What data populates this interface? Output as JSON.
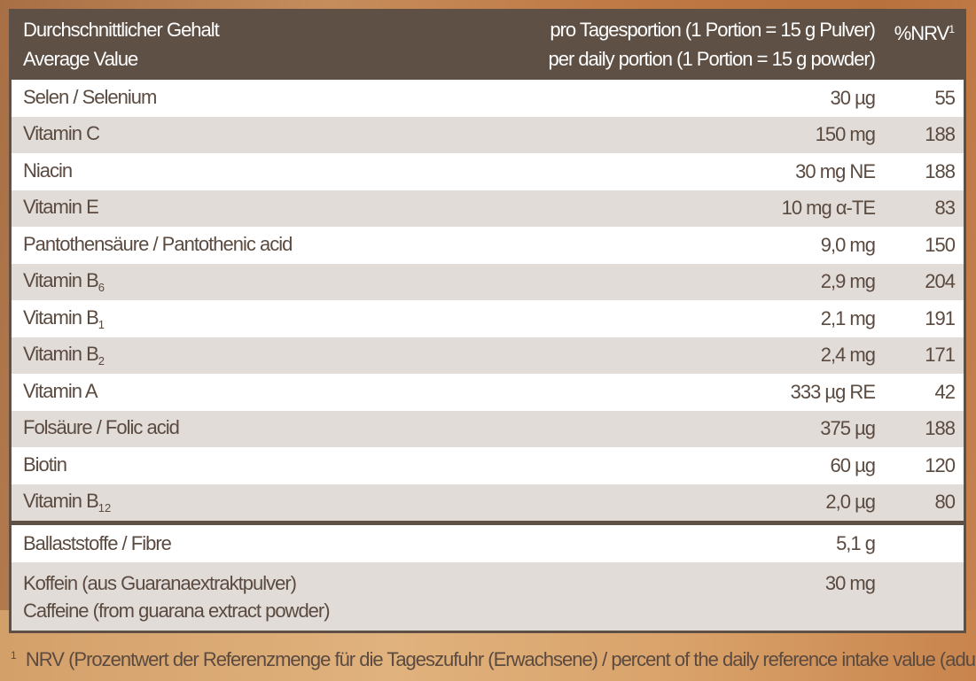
{
  "header": {
    "col1_line1": "Durchschnittlicher Gehalt",
    "col1_line2": "Average Value",
    "col2_line1": "pro Tagesportion (1 Portion = 15 g Pulver)",
    "col2_line2": "per daily portion (1 Portion = 15 g powder)",
    "col3": "%NRV",
    "col3_sup": "1"
  },
  "rows": [
    {
      "name": "Selen / Selenium",
      "sub": "",
      "amount": "30 µg",
      "nrv": "55"
    },
    {
      "name": "Vitamin C",
      "sub": "",
      "amount": "150 mg",
      "nrv": "188"
    },
    {
      "name": "Niacin",
      "sub": "",
      "amount": "30 mg NE",
      "nrv": "188"
    },
    {
      "name": "Vitamin E",
      "sub": "",
      "amount": "10 mg α-TE",
      "nrv": "83"
    },
    {
      "name": "Pantothensäure / Pantothenic acid",
      "sub": "",
      "amount": "9,0 mg",
      "nrv": "150"
    },
    {
      "name": "Vitamin B",
      "sub": "6",
      "amount": "2,9 mg",
      "nrv": "204"
    },
    {
      "name": "Vitamin B",
      "sub": "1",
      "amount": "2,1 mg",
      "nrv": "191"
    },
    {
      "name": "Vitamin B",
      "sub": "2",
      "amount": "2,4 mg",
      "nrv": "171"
    },
    {
      "name": "Vitamin A",
      "sub": "",
      "amount": "333 µg RE",
      "nrv": "42"
    },
    {
      "name": "Folsäure / Folic acid",
      "sub": "",
      "amount": "375 µg",
      "nrv": "188"
    },
    {
      "name": "Biotin",
      "sub": "",
      "amount": "60 µg",
      "nrv": "120"
    },
    {
      "name": "Vitamin B",
      "sub": "12",
      "amount": "2,0 µg",
      "nrv": "80"
    }
  ],
  "extra": [
    {
      "name": "Ballaststoffe / Fibre",
      "amount": "5,1 g"
    },
    {
      "name": "Koffein (aus Guaranaextraktpulver)",
      "name2": "Caffeine (from guarana extract powder)",
      "amount": "30 mg"
    }
  ],
  "footnote": {
    "marker": "1",
    "text": "NRV (Prozentwert der Referenzmenge für die Tageszufuhr (Erwachsene) / percent of the daily reference intake value (adults))"
  }
}
